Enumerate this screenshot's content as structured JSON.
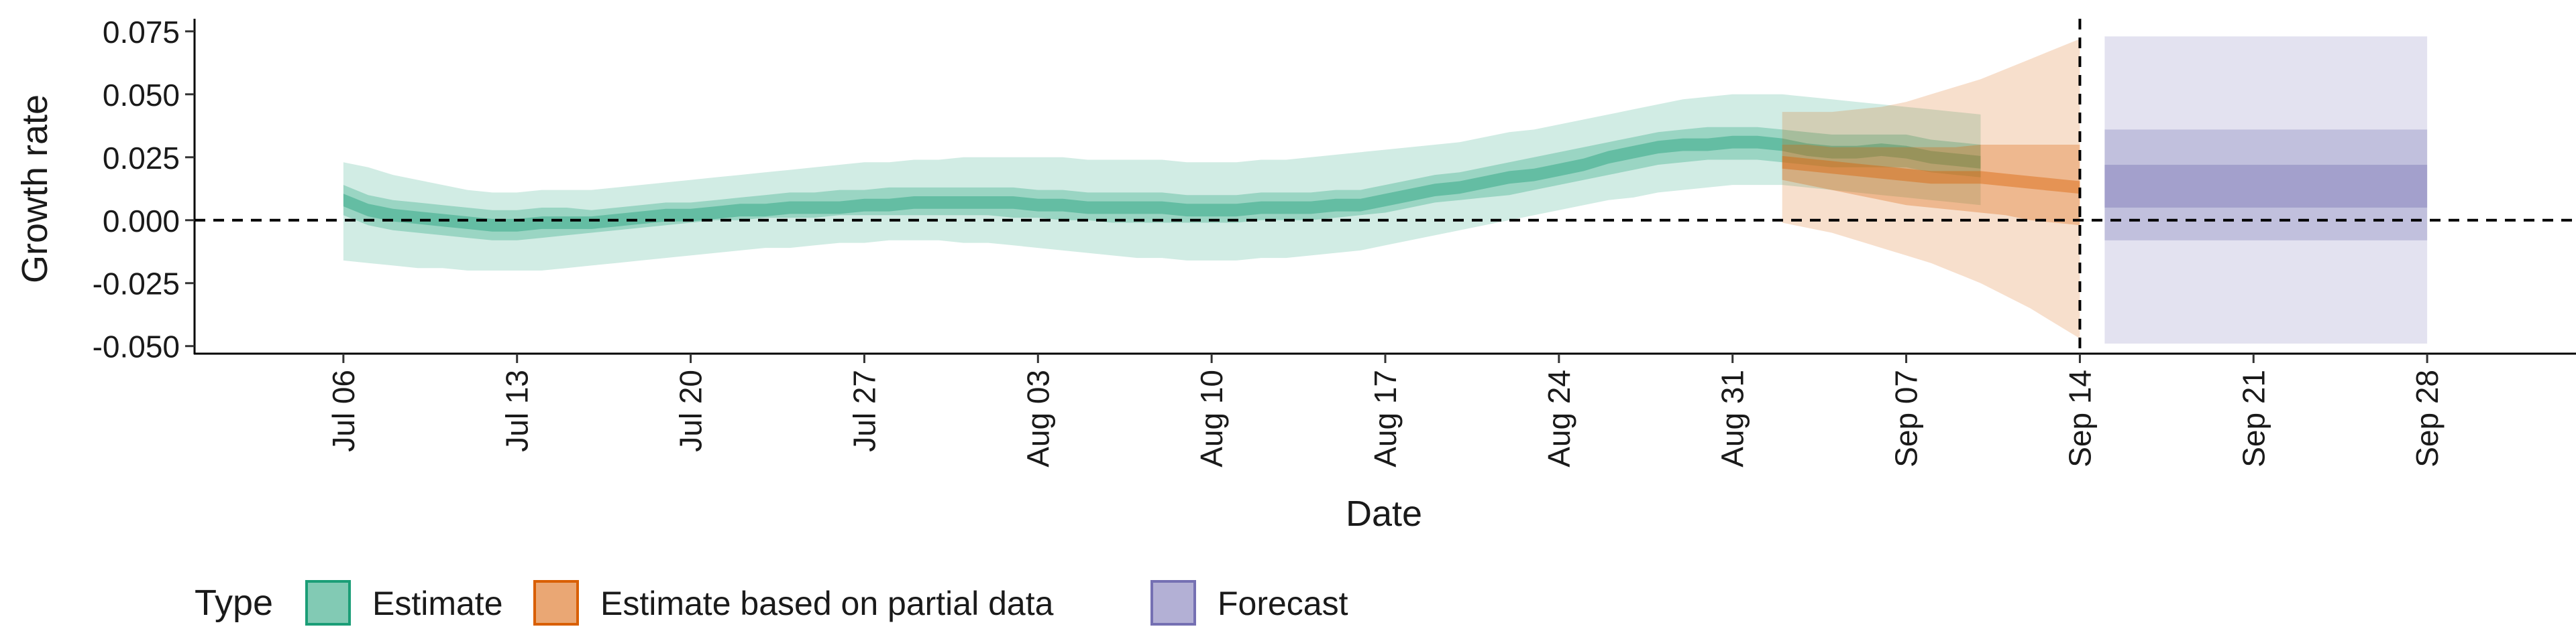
{
  "chart_data": {
    "type": "area",
    "xlabel": "Date",
    "ylabel": "Growth rate",
    "ylim": [
      -0.053,
      0.08
    ],
    "xlim": [
      "2020-07-00",
      "2020-10-04"
    ],
    "grid": false,
    "legend_position": "bottom-left",
    "y_ticks": [
      {
        "value": 0.075,
        "label": "0.075"
      },
      {
        "value": 0.05,
        "label": "0.050"
      },
      {
        "value": 0.025,
        "label": "0.025"
      },
      {
        "value": 0.0,
        "label": "0.000"
      },
      {
        "value": -0.025,
        "label": "-0.025"
      },
      {
        "value": -0.05,
        "label": "-0.050"
      }
    ],
    "x_ticks": [
      {
        "value": "2020-07-06",
        "label": "Jul 06"
      },
      {
        "value": "2020-07-13",
        "label": "Jul 13"
      },
      {
        "value": "2020-07-20",
        "label": "Jul 20"
      },
      {
        "value": "2020-07-27",
        "label": "Jul 27"
      },
      {
        "value": "2020-08-03",
        "label": "Aug 03"
      },
      {
        "value": "2020-08-10",
        "label": "Aug 10"
      },
      {
        "value": "2020-08-17",
        "label": "Aug 17"
      },
      {
        "value": "2020-08-24",
        "label": "Aug 24"
      },
      {
        "value": "2020-08-31",
        "label": "Aug 31"
      },
      {
        "value": "2020-09-07",
        "label": "Sep 07"
      },
      {
        "value": "2020-09-14",
        "label": "Sep 14"
      },
      {
        "value": "2020-09-21",
        "label": "Sep 21"
      },
      {
        "value": "2020-09-28",
        "label": "Sep 28"
      }
    ],
    "reference_lines": {
      "horizontal_y": 0.0,
      "vertical_x": "2020-09-14"
    },
    "legend": {
      "title": "Type",
      "entries": [
        {
          "label": "Estimate",
          "color": "#1b9e77"
        },
        {
          "label": "Estimate based on partial data",
          "color": "#d95f02"
        },
        {
          "label": "Forecast",
          "color": "#7570b3"
        }
      ]
    },
    "series": [
      {
        "type": "Estimate",
        "color": "#1b9e77",
        "x_start": "2020-07-06",
        "median": [
          0.008,
          0.004,
          0.002,
          0.001,
          0.0,
          -0.001,
          -0.002,
          -0.002,
          -0.001,
          -0.001,
          -0.001,
          0.0,
          0.001,
          0.002,
          0.002,
          0.003,
          0.004,
          0.004,
          0.005,
          0.005,
          0.005,
          0.006,
          0.006,
          0.007,
          0.007,
          0.007,
          0.007,
          0.007,
          0.006,
          0.006,
          0.005,
          0.005,
          0.005,
          0.005,
          0.004,
          0.004,
          0.004,
          0.005,
          0.005,
          0.005,
          0.006,
          0.006,
          0.008,
          0.01,
          0.012,
          0.013,
          0.015,
          0.017,
          0.018,
          0.02,
          0.022,
          0.025,
          0.027,
          0.029,
          0.03,
          0.03,
          0.031,
          0.031,
          0.03,
          0.028,
          0.027,
          0.027,
          0.028,
          0.027,
          0.025,
          0.024,
          0.023
        ],
        "inner_low": [
          0.002,
          -0.002,
          -0.004,
          -0.005,
          -0.006,
          -0.007,
          -0.008,
          -0.008,
          -0.007,
          -0.006,
          -0.005,
          -0.004,
          -0.003,
          -0.002,
          -0.001,
          0.0,
          0.0,
          0.001,
          0.001,
          0.001,
          0.002,
          0.002,
          0.002,
          0.002,
          0.002,
          0.002,
          0.002,
          0.001,
          0.001,
          0.0,
          0.0,
          -0.001,
          -0.001,
          -0.001,
          -0.001,
          -0.001,
          -0.001,
          0.0,
          0.0,
          0.0,
          0.001,
          0.002,
          0.003,
          0.005,
          0.007,
          0.008,
          0.009,
          0.01,
          0.012,
          0.014,
          0.016,
          0.018,
          0.02,
          0.022,
          0.023,
          0.024,
          0.024,
          0.024,
          0.023,
          0.022,
          0.021,
          0.021,
          0.021,
          0.021,
          0.019,
          0.018,
          0.017
        ],
        "inner_high": [
          0.014,
          0.01,
          0.008,
          0.007,
          0.006,
          0.005,
          0.004,
          0.004,
          0.005,
          0.005,
          0.004,
          0.005,
          0.006,
          0.007,
          0.007,
          0.008,
          0.009,
          0.01,
          0.011,
          0.011,
          0.012,
          0.012,
          0.013,
          0.013,
          0.013,
          0.013,
          0.013,
          0.013,
          0.012,
          0.012,
          0.011,
          0.011,
          0.011,
          0.011,
          0.01,
          0.01,
          0.01,
          0.011,
          0.011,
          0.011,
          0.012,
          0.012,
          0.014,
          0.016,
          0.018,
          0.019,
          0.021,
          0.023,
          0.025,
          0.027,
          0.029,
          0.031,
          0.033,
          0.035,
          0.036,
          0.037,
          0.037,
          0.037,
          0.036,
          0.035,
          0.034,
          0.034,
          0.034,
          0.034,
          0.032,
          0.031,
          0.03
        ],
        "outer_low": [
          -0.016,
          -0.017,
          -0.018,
          -0.019,
          -0.019,
          -0.02,
          -0.02,
          -0.02,
          -0.02,
          -0.019,
          -0.018,
          -0.017,
          -0.016,
          -0.015,
          -0.014,
          -0.013,
          -0.012,
          -0.011,
          -0.011,
          -0.01,
          -0.009,
          -0.009,
          -0.008,
          -0.008,
          -0.008,
          -0.009,
          -0.009,
          -0.01,
          -0.011,
          -0.012,
          -0.013,
          -0.014,
          -0.015,
          -0.015,
          -0.016,
          -0.016,
          -0.016,
          -0.015,
          -0.015,
          -0.014,
          -0.013,
          -0.012,
          -0.01,
          -0.008,
          -0.006,
          -0.004,
          -0.002,
          0.0,
          0.002,
          0.004,
          0.006,
          0.008,
          0.009,
          0.011,
          0.012,
          0.013,
          0.014,
          0.014,
          0.014,
          0.013,
          0.012,
          0.011,
          0.01,
          0.009,
          0.008,
          0.007,
          0.006
        ],
        "outer_high": [
          0.023,
          0.021,
          0.018,
          0.016,
          0.014,
          0.012,
          0.011,
          0.011,
          0.012,
          0.012,
          0.012,
          0.013,
          0.014,
          0.015,
          0.016,
          0.017,
          0.018,
          0.019,
          0.02,
          0.021,
          0.022,
          0.023,
          0.023,
          0.024,
          0.024,
          0.025,
          0.025,
          0.025,
          0.025,
          0.025,
          0.024,
          0.024,
          0.024,
          0.024,
          0.023,
          0.023,
          0.023,
          0.024,
          0.024,
          0.025,
          0.026,
          0.027,
          0.028,
          0.029,
          0.03,
          0.031,
          0.033,
          0.035,
          0.036,
          0.038,
          0.04,
          0.042,
          0.044,
          0.046,
          0.048,
          0.049,
          0.05,
          0.05,
          0.05,
          0.049,
          0.048,
          0.047,
          0.046,
          0.045,
          0.044,
          0.043,
          0.042
        ]
      },
      {
        "type": "Estimate based on partial data",
        "color": "#d95f02",
        "x_start": "2020-09-02",
        "median": [
          0.023,
          0.022,
          0.021,
          0.02,
          0.019,
          0.018,
          0.017,
          0.017,
          0.017,
          0.016,
          0.015,
          0.014,
          0.013
        ],
        "inner_low": [
          0.016,
          0.014,
          0.012,
          0.01,
          0.008,
          0.006,
          0.005,
          0.004,
          0.003,
          0.002,
          0.0,
          -0.001,
          -0.002
        ],
        "inner_high": [
          0.03,
          0.03,
          0.029,
          0.029,
          0.029,
          0.029,
          0.029,
          0.029,
          0.03,
          0.03,
          0.03,
          0.03,
          0.03
        ],
        "outer_low": [
          -0.001,
          -0.003,
          -0.005,
          -0.008,
          -0.011,
          -0.014,
          -0.017,
          -0.021,
          -0.025,
          -0.03,
          -0.035,
          -0.041,
          -0.047
        ],
        "outer_high": [
          0.043,
          0.043,
          0.043,
          0.044,
          0.045,
          0.047,
          0.05,
          0.053,
          0.056,
          0.06,
          0.064,
          0.068,
          0.072
        ]
      },
      {
        "type": "Forecast",
        "color": "#7570b3",
        "x_start": "2020-09-15",
        "x_end": "2020-09-28",
        "median_band": [
          0.005,
          0.022
        ],
        "inner_band": [
          -0.008,
          0.036
        ],
        "outer_band": [
          -0.049,
          0.073
        ]
      }
    ]
  }
}
